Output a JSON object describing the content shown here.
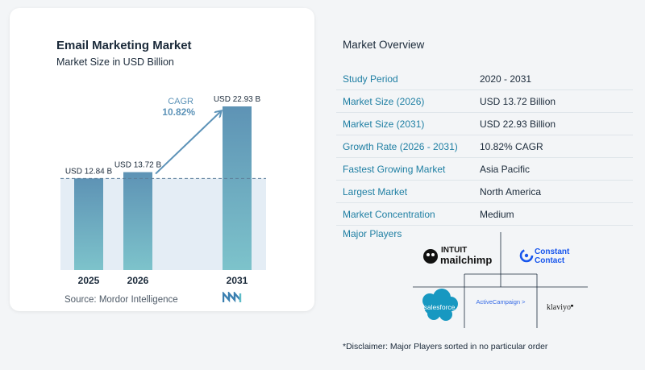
{
  "chart": {
    "title": "Email Marketing Market",
    "subtitle": "Market Size in USD Billion",
    "source": "Source:  Mordor Intelligence",
    "cagr_label": "CAGR",
    "cagr_value": "10.82%"
  },
  "chart_data": {
    "type": "bar",
    "title": "Email Marketing Market",
    "subtitle": "Market Size in USD Billion",
    "categories": [
      "2025",
      "2026",
      "2031"
    ],
    "values": [
      12.84,
      13.72,
      22.93
    ],
    "data_labels": [
      "USD 12.84 B",
      "USD 13.72 B",
      "USD 22.93 B"
    ],
    "colors": {
      "bar_top": "#5e93b5",
      "bar_bottom": "#7dc3cb",
      "arrow": "#5d93b8",
      "band": "#e4edf5"
    }
  },
  "overview": {
    "title": "Market Overview",
    "rows": [
      {
        "label": "Study Period",
        "value": "2020 - 2031"
      },
      {
        "label": "Market Size (2026)",
        "value": "USD 13.72 Billion"
      },
      {
        "label": "Market Size (2031)",
        "value": "USD 22.93 Billion"
      },
      {
        "label": "Growth Rate (2026 - 2031)",
        "value": "10.82% CAGR"
      },
      {
        "label": "Fastest Growing Market",
        "value": "Asia Pacific"
      },
      {
        "label": "Largest Market",
        "value": "North America"
      },
      {
        "label": "Market Concentration",
        "value": "Medium"
      }
    ]
  },
  "players": {
    "title": "Major Players",
    "mailchimp_top": "INTUIT",
    "mailchimp_bottom": "mailchimp",
    "constant_top": "Constant",
    "constant_bottom": "Contact",
    "salesforce": "salesforce",
    "activecampaign": "ActiveCampaign >",
    "klaviyo": "klaviyo"
  },
  "disclaimer": "*Disclaimer: Major Players sorted in no particular order"
}
